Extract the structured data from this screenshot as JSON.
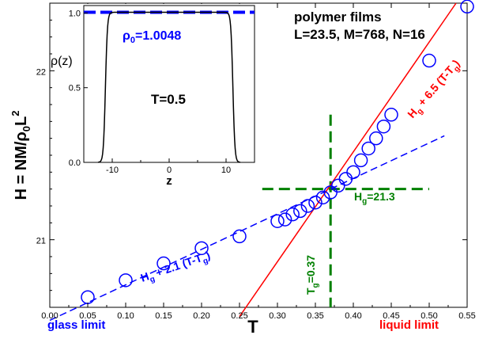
{
  "chart_data": [
    {
      "type": "scatter",
      "title": "",
      "xlabel": "T",
      "ylabel_parts": {
        "main": "H = NM/ρ",
        "sub": "0",
        "after": "L",
        "sup": "2"
      },
      "xlim": [
        0.0,
        0.55
      ],
      "ylim": [
        20.6,
        22.4
      ],
      "x_ticks": [
        0.0,
        0.05,
        0.1,
        0.15,
        0.2,
        0.25,
        0.3,
        0.35,
        0.4,
        0.45,
        0.5,
        0.55
      ],
      "x_tick_labels": [
        "0.00",
        "0.05",
        "0.10",
        "0.15",
        "0.20",
        "0.25",
        "0.30",
        "0.35",
        "0.40",
        "0.45",
        "0.50",
        "0.55"
      ],
      "y_ticks": [
        21,
        22
      ],
      "y_tick_labels": [
        "21",
        "22"
      ],
      "grid": false,
      "series": [
        {
          "marker": "open-circle",
          "color": "#0000ff",
          "x": [
            0.05,
            0.1,
            0.15,
            0.2,
            0.25,
            0.3,
            0.31,
            0.32,
            0.33,
            0.34,
            0.35,
            0.36,
            0.37,
            0.38,
            0.39,
            0.4,
            0.41,
            0.42,
            0.43,
            0.44,
            0.45,
            0.5,
            0.55
          ],
          "y": [
            20.66,
            20.76,
            20.86,
            20.95,
            21.02,
            21.11,
            21.12,
            21.15,
            21.17,
            21.2,
            21.22,
            21.25,
            21.28,
            21.32,
            21.36,
            21.4,
            21.47,
            21.54,
            21.6,
            21.67,
            21.74,
            22.06,
            22.38
          ]
        }
      ],
      "fits": [
        {
          "label_parts": {
            "a": "H",
            "a_sub": "g",
            "b": " + 2.1 (T-T",
            "b_sub": "g",
            "c": ")"
          },
          "color": "#0000ff",
          "style": "dashed",
          "x": [
            0.0,
            0.52
          ],
          "y": [
            20.523,
            21.615
          ]
        },
        {
          "label_parts": {
            "a": "H",
            "a_sub": "g",
            "b": " + 6.5 (T-T",
            "b_sub": "g",
            "c": ")"
          },
          "color": "#ff0000",
          "style": "solid",
          "x": [
            0.25,
            0.55
          ],
          "y": [
            20.545,
            22.495
          ]
        }
      ],
      "reference_lines": [
        {
          "orientation": "vertical",
          "value": 0.37,
          "label_parts": {
            "a": "T",
            "a_sub": "g",
            "b": "=0.37"
          },
          "color": "#008000",
          "style": "dashed"
        },
        {
          "orientation": "horizontal",
          "value": 21.3,
          "label_parts": {
            "a": "H",
            "a_sub": "g",
            "b": "=21.3"
          },
          "color": "#008000",
          "style": "dashed"
        }
      ],
      "annotations": {
        "glass_limit": "glass limit",
        "liquid_limit": "liquid limit",
        "films_title": "polymer films",
        "films_params": "L=23.5, M=768, N=16"
      }
    },
    {
      "type": "line",
      "title": "",
      "xlabel": "z",
      "ylabel": "ρ(z)",
      "xlim": [
        -15,
        15
      ],
      "ylim": [
        0.0,
        1.05
      ],
      "x_ticks": [
        -10,
        0,
        10
      ],
      "x_tick_labels": [
        "-10",
        "0",
        "10"
      ],
      "y_ticks": [
        0.0,
        0.5,
        1.0
      ],
      "y_tick_labels": [
        "0.0",
        "0.5",
        "1.0"
      ],
      "grid": false,
      "profile": {
        "color": "#000000",
        "edge_center": 11.2,
        "interface_width": 0.35,
        "plateau": 1.0048
      },
      "reference_line": {
        "value": 1.0048,
        "color": "#0000ff",
        "style": "dashed",
        "label_parts": {
          "a": "ρ",
          "a_sub": "0",
          "b": "=1.0048"
        }
      },
      "annotation": "T=0.5"
    }
  ]
}
